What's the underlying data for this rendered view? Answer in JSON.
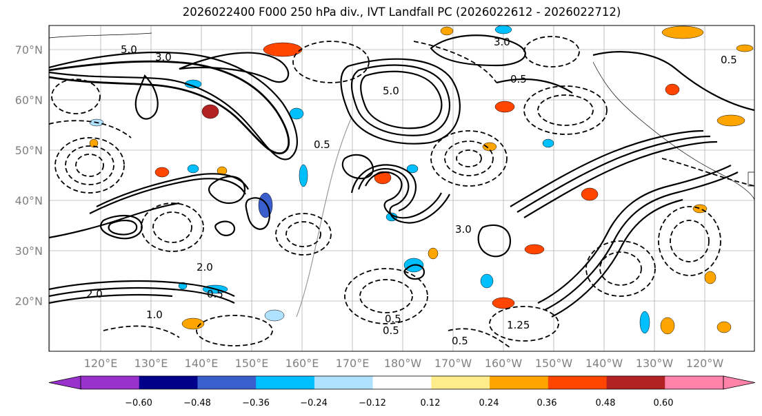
{
  "title": "2026022400 F000 250 hPa div., IVT Landfall PC (2026022612 - 2026022712)",
  "map": {
    "lat_labels": [
      "70°N",
      "60°N",
      "50°N",
      "40°N",
      "30°N",
      "20°N"
    ],
    "lon_labels": [
      "120°E",
      "130°E",
      "140°E",
      "150°E",
      "160°E",
      "170°E",
      "180°W",
      "170°W",
      "160°W",
      "150°W",
      "140°W",
      "130°W",
      "120°W"
    ],
    "contour_labels": [
      "5.0",
      "3.0",
      "5.0",
      "3.0",
      "0.5",
      "0.5",
      "0.5",
      "2.0",
      "1.0",
      "0.5",
      "0.5",
      "0.5",
      "1.25",
      "0.5",
      "2.0",
      "3.0"
    ]
  },
  "colorbar": {
    "ticks": [
      "−0.60",
      "−0.48",
      "−0.36",
      "−0.24",
      "−0.12",
      "0.12",
      "0.24",
      "0.36",
      "0.48",
      "0.60"
    ],
    "colors": [
      "#9932cc",
      "#00008b",
      "#3a5fcd",
      "#00bfff",
      "#b0e2ff",
      "#ffffff",
      "#ffec8b",
      "#ffa500",
      "#ff4500",
      "#b22222",
      "#ff82ab"
    ]
  }
}
